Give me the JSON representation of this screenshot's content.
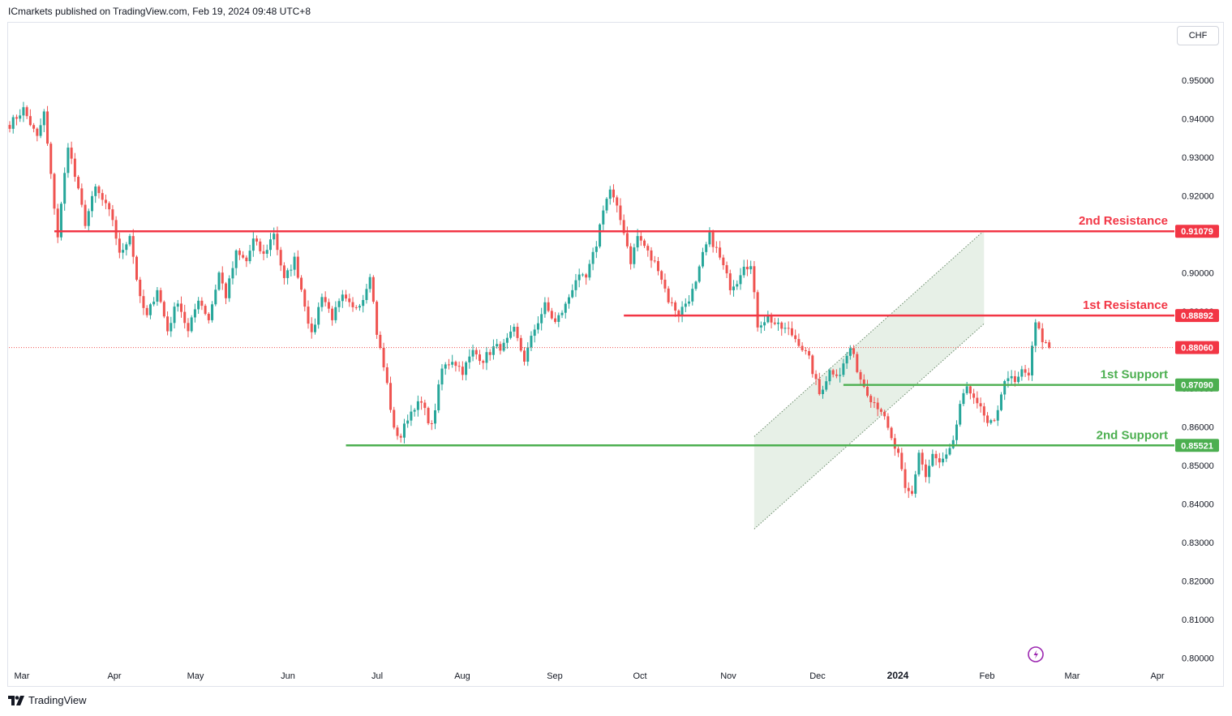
{
  "header": {
    "publisher_text": "ICmarkets published on TradingView.com, Feb 19, 2024 09:48 UTC+8"
  },
  "currency": "CHF",
  "footer": {
    "brand": "TradingView"
  },
  "colors": {
    "up": "#26a69a",
    "down": "#ef5350",
    "resistance": "#f23645",
    "support": "#4caf50",
    "channel_fill": "#e3ede3",
    "channel_line": "#6c8c6c"
  },
  "chart_data": {
    "type": "candlestick",
    "ylim": [
      0.795,
      0.9595
    ],
    "y_ticks": [
      "0.95000",
      "0.94000",
      "0.93000",
      "0.92000",
      "0.91000",
      "0.90000",
      "0.89000",
      "0.88000",
      "0.87000",
      "0.86000",
      "0.85000",
      "0.84000",
      "0.83000",
      "0.82000",
      "0.81000",
      "0.80000"
    ],
    "x_ticks": [
      {
        "label": "Mar",
        "bold": false
      },
      {
        "label": "Apr",
        "bold": false
      },
      {
        "label": "May",
        "bold": false
      },
      {
        "label": "Jun",
        "bold": false
      },
      {
        "label": "Jul",
        "bold": false
      },
      {
        "label": "Aug",
        "bold": false
      },
      {
        "label": "Sep",
        "bold": false
      },
      {
        "label": "Oct",
        "bold": false
      },
      {
        "label": "Nov",
        "bold": false
      },
      {
        "label": "Dec",
        "bold": false
      },
      {
        "label": "2024",
        "bold": true
      },
      {
        "label": "Feb",
        "bold": false
      },
      {
        "label": "Mar",
        "bold": false
      },
      {
        "label": "Apr",
        "bold": false
      }
    ],
    "levels": [
      {
        "name": "2nd Resistance",
        "value": 0.91079,
        "price_label": "0.91079",
        "kind": "resistance",
        "start_index": 13
      },
      {
        "name": "1st Resistance",
        "value": 0.88892,
        "price_label": "0.88892",
        "kind": "resistance",
        "start_index": 179
      },
      {
        "name": "1st Support",
        "value": 0.8709,
        "price_label": "0.87090",
        "kind": "support",
        "start_index": 243
      },
      {
        "name": "2nd Support",
        "value": 0.85521,
        "price_label": "0.85521",
        "kind": "support",
        "start_index": 98
      }
    ],
    "last_price": {
      "value": 0.8806,
      "label": "0.88060"
    },
    "channel": {
      "lower_start": [
        217,
        0.8335
      ],
      "lower_end": [
        284,
        0.8868
      ],
      "upper_start": [
        217,
        0.8575
      ],
      "upper_end": [
        284,
        0.911
      ]
    },
    "anchors": [
      [
        0,
        0.9385
      ],
      [
        4,
        0.9425
      ],
      [
        8,
        0.935
      ],
      [
        10,
        0.9415
      ],
      [
        12,
        0.925
      ],
      [
        14,
        0.9095
      ],
      [
        17,
        0.9335
      ],
      [
        19,
        0.925
      ],
      [
        22,
        0.913
      ],
      [
        25,
        0.922
      ],
      [
        30,
        0.914
      ],
      [
        32,
        0.9045
      ],
      [
        35,
        0.91
      ],
      [
        38,
        0.893
      ],
      [
        40,
        0.8885
      ],
      [
        43,
        0.896
      ],
      [
        46,
        0.885
      ],
      [
        49,
        0.893
      ],
      [
        52,
        0.8845
      ],
      [
        55,
        0.8935
      ],
      [
        58,
        0.888
      ],
      [
        61,
        0.9
      ],
      [
        63,
        0.894
      ],
      [
        66,
        0.905
      ],
      [
        69,
        0.903
      ],
      [
        71,
        0.9085
      ],
      [
        74,
        0.9045
      ],
      [
        77,
        0.9105
      ],
      [
        80,
        0.898
      ],
      [
        83,
        0.9035
      ],
      [
        86,
        0.892
      ],
      [
        88,
        0.8835
      ],
      [
        91,
        0.8945
      ],
      [
        94,
        0.8885
      ],
      [
        97,
        0.8935
      ],
      [
        100,
        0.8905
      ],
      [
        103,
        0.8935
      ],
      [
        105,
        0.9
      ],
      [
        107,
        0.8845
      ],
      [
        110,
        0.871
      ],
      [
        112,
        0.859
      ],
      [
        114,
        0.8575
      ],
      [
        116,
        0.8625
      ],
      [
        118,
        0.8655
      ],
      [
        120,
        0.866
      ],
      [
        123,
        0.86
      ],
      [
        126,
        0.875
      ],
      [
        129,
        0.8775
      ],
      [
        132,
        0.8745
      ],
      [
        135,
        0.8795
      ],
      [
        138,
        0.8775
      ],
      [
        141,
        0.8805
      ],
      [
        144,
        0.881
      ],
      [
        147,
        0.885
      ],
      [
        150,
        0.8775
      ],
      [
        153,
        0.8855
      ],
      [
        156,
        0.8915
      ],
      [
        159,
        0.887
      ],
      [
        162,
        0.8915
      ],
      [
        165,
        0.8985
      ],
      [
        168,
        0.8985
      ],
      [
        171,
        0.9075
      ],
      [
        173,
        0.917
      ],
      [
        175,
        0.9215
      ],
      [
        177,
        0.9165
      ],
      [
        179,
        0.911
      ],
      [
        181,
        0.903
      ],
      [
        183,
        0.9095
      ],
      [
        185,
        0.907
      ],
      [
        187,
        0.9035
      ],
      [
        189,
        0.9015
      ],
      [
        192,
        0.893
      ],
      [
        195,
        0.8895
      ],
      [
        198,
        0.8935
      ],
      [
        200,
        0.897
      ],
      [
        202,
        0.9045
      ],
      [
        204,
        0.9095
      ],
      [
        206,
        0.906
      ],
      [
        208,
        0.9015
      ],
      [
        210,
        0.8965
      ],
      [
        212,
        0.898
      ],
      [
        214,
        0.9025
      ],
      [
        216,
        0.9015
      ],
      [
        218,
        0.8865
      ],
      [
        221,
        0.8885
      ],
      [
        224,
        0.886
      ],
      [
        227,
        0.885
      ],
      [
        230,
        0.882
      ],
      [
        233,
        0.8775
      ],
      [
        236,
        0.8685
      ],
      [
        239,
        0.8745
      ],
      [
        242,
        0.874
      ],
      [
        245,
        0.8805
      ],
      [
        248,
        0.8725
      ],
      [
        251,
        0.8675
      ],
      [
        254,
        0.8645
      ],
      [
        257,
        0.8565
      ],
      [
        259,
        0.8525
      ],
      [
        261,
        0.8435
      ],
      [
        263,
        0.8425
      ],
      [
        265,
        0.8535
      ],
      [
        267,
        0.847
      ],
      [
        269,
        0.8525
      ],
      [
        271,
        0.8505
      ],
      [
        273,
        0.852
      ],
      [
        275,
        0.8555
      ],
      [
        277,
        0.866
      ],
      [
        279,
        0.8695
      ],
      [
        281,
        0.8685
      ],
      [
        283,
        0.8645
      ],
      [
        285,
        0.8605
      ],
      [
        287,
        0.861
      ],
      [
        289,
        0.869
      ],
      [
        291,
        0.8735
      ],
      [
        293,
        0.871
      ],
      [
        295,
        0.8745
      ],
      [
        297,
        0.8735
      ],
      [
        299,
        0.887
      ],
      [
        301,
        0.8825
      ],
      [
        303,
        0.8806
      ]
    ],
    "last_index": 303
  }
}
